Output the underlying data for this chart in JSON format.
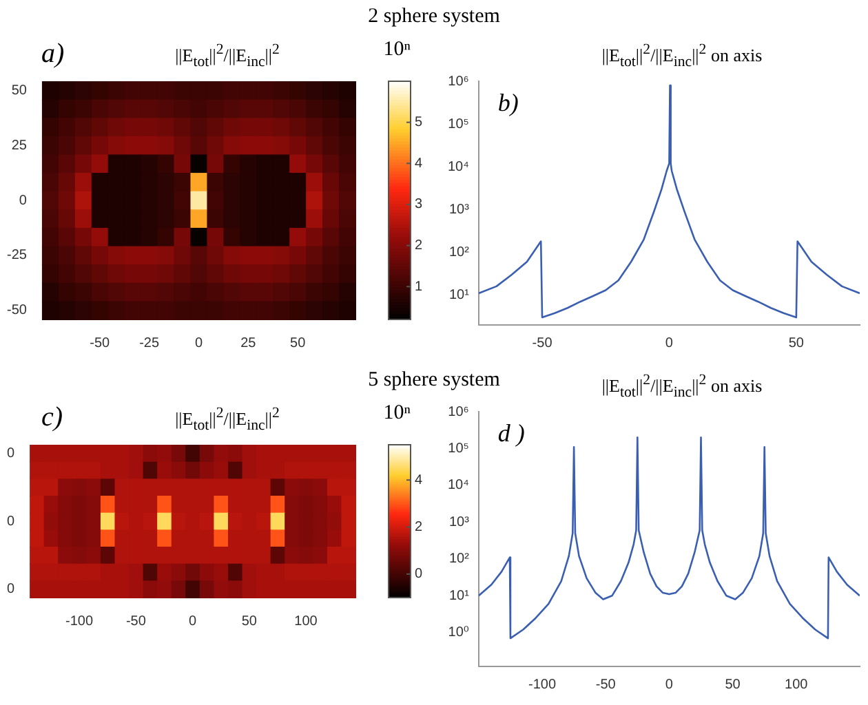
{
  "chart_data": [
    {
      "type": "heatmap",
      "title": "||E$_{tot}$||$^{2}$/||E$_{inc}$||$^{2}$",
      "clabel": "10ⁿ",
      "annotations": [
        "2 sphere system",
        "a)"
      ],
      "clim": [
        0.2,
        6
      ],
      "cticks": [
        1,
        2,
        3,
        4,
        5
      ],
      "categories": [
        null,
        null,
        null,
        "-50",
        null,
        null,
        "-25",
        null,
        null,
        "0",
        null,
        null,
        "25",
        null,
        null,
        "50",
        null,
        null,
        null
      ],
      "y_categories": [
        "50",
        null,
        null,
        "25",
        null,
        null,
        "0",
        null,
        null,
        "-25",
        null,
        null,
        "-50"
      ],
      "cells": [
        [
          0.6,
          0.7,
          0.8,
          0.9,
          1.0,
          1.1,
          1.1,
          1.1,
          1.0,
          1.0,
          1.0,
          1.1,
          1.1,
          1.1,
          1.0,
          0.9,
          0.8,
          0.7,
          0.6
        ],
        [
          0.7,
          0.9,
          1.0,
          1.2,
          1.3,
          1.4,
          1.4,
          1.3,
          1.2,
          1.1,
          1.2,
          1.3,
          1.4,
          1.4,
          1.3,
          1.2,
          1.0,
          0.9,
          0.7
        ],
        [
          0.9,
          1.1,
          1.3,
          1.5,
          1.7,
          1.8,
          1.8,
          1.7,
          1.5,
          1.3,
          1.5,
          1.7,
          1.8,
          1.8,
          1.7,
          1.5,
          1.3,
          1.1,
          0.9
        ],
        [
          1.0,
          1.2,
          1.5,
          1.8,
          2.0,
          2.1,
          2.1,
          2.0,
          1.7,
          1.4,
          1.7,
          2.0,
          2.1,
          2.1,
          2.0,
          1.8,
          1.5,
          1.2,
          1.0
        ],
        [
          1.1,
          1.4,
          1.8,
          2.2,
          0.6,
          0.6,
          0.7,
          0.9,
          1.8,
          0.3,
          1.8,
          0.9,
          0.7,
          0.6,
          0.6,
          2.2,
          1.8,
          1.4,
          1.1
        ],
        [
          1.2,
          1.6,
          2.3,
          0.6,
          0.6,
          0.6,
          0.7,
          0.8,
          1.0,
          4.5,
          1.0,
          0.8,
          0.7,
          0.6,
          0.6,
          0.6,
          2.3,
          1.6,
          1.2
        ],
        [
          1.3,
          1.7,
          2.5,
          0.6,
          0.6,
          0.6,
          0.7,
          0.8,
          1.1,
          5.5,
          1.1,
          0.8,
          0.7,
          0.6,
          0.6,
          0.6,
          2.5,
          1.7,
          1.3
        ],
        [
          1.2,
          1.6,
          2.3,
          0.6,
          0.6,
          0.6,
          0.7,
          0.8,
          1.0,
          4.5,
          1.0,
          0.8,
          0.7,
          0.6,
          0.6,
          0.6,
          2.3,
          1.6,
          1.2
        ],
        [
          1.1,
          1.4,
          1.8,
          2.2,
          0.6,
          0.6,
          0.7,
          0.9,
          1.8,
          0.3,
          1.8,
          0.9,
          0.7,
          0.6,
          0.6,
          2.2,
          1.8,
          1.4,
          1.1
        ],
        [
          1.0,
          1.2,
          1.5,
          1.8,
          2.0,
          2.1,
          2.1,
          2.0,
          1.7,
          1.4,
          1.7,
          2.0,
          2.1,
          2.1,
          2.0,
          1.8,
          1.5,
          1.2,
          1.0
        ],
        [
          0.9,
          1.1,
          1.3,
          1.5,
          1.7,
          1.8,
          1.8,
          1.7,
          1.5,
          1.3,
          1.5,
          1.7,
          1.8,
          1.8,
          1.7,
          1.5,
          1.3,
          1.1,
          0.9
        ],
        [
          0.7,
          0.9,
          1.0,
          1.2,
          1.3,
          1.4,
          1.4,
          1.3,
          1.2,
          1.1,
          1.2,
          1.3,
          1.4,
          1.4,
          1.3,
          1.2,
          1.0,
          0.9,
          0.7
        ],
        [
          0.6,
          0.7,
          0.8,
          0.9,
          1.0,
          1.1,
          1.1,
          1.1,
          1.0,
          1.0,
          1.0,
          1.1,
          1.1,
          1.1,
          1.0,
          0.9,
          0.8,
          0.7,
          0.6
        ]
      ]
    },
    {
      "type": "line",
      "title": "||E$_{tot}$||$^{2}$/||E$_{inc}$||$^{2}$ on axis",
      "annotations": [
        "b)"
      ],
      "log": "y",
      "xlim": [
        -75,
        75
      ],
      "xticks": [
        -50,
        0,
        50
      ],
      "ylim": [
        2,
        1000000
      ],
      "yticks": [
        {
          "value": 10,
          "label": "10¹"
        },
        {
          "value": 100,
          "label": "10²"
        },
        {
          "value": 1000,
          "label": "10³"
        },
        {
          "value": 10000,
          "label": "10⁴"
        },
        {
          "value": 100000,
          "label": "10⁵"
        },
        {
          "value": 1000000,
          "label": "10⁶"
        }
      ],
      "series": [
        {
          "color": "#3b5fb0",
          "x": [
            -75,
            -68,
            -62,
            -56,
            -50.5,
            -50,
            -45,
            -40,
            -35,
            -30,
            -25,
            -20,
            -15,
            -10,
            -6,
            -3,
            -1,
            0,
            0.3,
            0.6,
            1,
            3,
            6,
            10,
            15,
            20,
            25,
            30,
            35,
            40,
            45,
            50,
            50.5,
            56,
            62,
            68,
            75
          ],
          "values": [
            11,
            16,
            30,
            60,
            180,
            3,
            3.8,
            5,
            7,
            9.5,
            13,
            22,
            60,
            200,
            900,
            3000,
            8000,
            12000,
            800000,
            12000,
            8000,
            3000,
            900,
            200,
            60,
            22,
            13,
            9.5,
            7,
            5,
            3.8,
            3,
            180,
            60,
            30,
            16,
            11
          ]
        }
      ]
    },
    {
      "type": "heatmap",
      "title": "||E$_{tot}$||$^{2}$/||E$_{inc}$||$^{2}$",
      "clabel": "10ⁿ",
      "annotations": [
        "5 sphere system",
        "c)"
      ],
      "clim": [
        -1,
        5.5
      ],
      "cticks": [
        0,
        2,
        4
      ],
      "categories": [
        null,
        null,
        null,
        "-100",
        null,
        null,
        null,
        "-50",
        null,
        null,
        null,
        "0",
        null,
        null,
        null,
        "50",
        null,
        null,
        null,
        "100",
        null,
        null,
        null
      ],
      "y_categories": [
        "0",
        null,
        null,
        null,
        "0",
        null,
        null,
        null,
        "0"
      ],
      "cells": [
        [
          1.5,
          1.5,
          1.5,
          1.5,
          1.5,
          1.5,
          1.5,
          1.4,
          1.1,
          1.2,
          0.8,
          0.0,
          0.8,
          1.2,
          1.1,
          1.4,
          1.5,
          1.5,
          1.5,
          1.5,
          1.5,
          1.5,
          1.5
        ],
        [
          1.6,
          1.6,
          1.6,
          1.6,
          1.6,
          1.5,
          1.5,
          1.4,
          0.2,
          1.3,
          1.1,
          0.7,
          1.1,
          1.3,
          0.2,
          1.4,
          1.5,
          1.5,
          1.6,
          1.6,
          1.6,
          1.6,
          1.6
        ],
        [
          1.7,
          1.7,
          1.1,
          1.0,
          1.1,
          0.4,
          1.6,
          1.6,
          1.6,
          1.6,
          1.6,
          1.6,
          1.6,
          1.6,
          1.6,
          1.6,
          1.6,
          0.4,
          1.1,
          1.0,
          1.1,
          1.7,
          1.7
        ],
        [
          1.8,
          1.3,
          1.0,
          0.9,
          1.0,
          3.0,
          1.6,
          1.6,
          1.6,
          3.0,
          1.6,
          1.6,
          1.6,
          3.0,
          1.6,
          1.6,
          1.6,
          3.0,
          1.0,
          0.9,
          1.0,
          1.3,
          1.8
        ],
        [
          1.8,
          1.2,
          1.0,
          0.9,
          1.0,
          4.5,
          1.7,
          1.6,
          1.7,
          4.5,
          1.7,
          1.6,
          1.7,
          4.5,
          1.7,
          1.6,
          1.7,
          4.5,
          1.0,
          0.9,
          1.0,
          1.2,
          1.8
        ],
        [
          1.8,
          1.3,
          1.0,
          0.9,
          1.0,
          3.0,
          1.6,
          1.6,
          1.6,
          3.0,
          1.6,
          1.6,
          1.6,
          3.0,
          1.6,
          1.6,
          1.6,
          3.0,
          1.0,
          0.9,
          1.0,
          1.3,
          1.8
        ],
        [
          1.7,
          1.7,
          1.1,
          1.0,
          1.1,
          0.4,
          1.6,
          1.6,
          1.6,
          1.6,
          1.6,
          1.6,
          1.6,
          1.6,
          1.6,
          1.6,
          1.6,
          0.4,
          1.1,
          1.0,
          1.1,
          1.7,
          1.7
        ],
        [
          1.6,
          1.6,
          1.6,
          1.6,
          1.6,
          1.5,
          1.5,
          1.4,
          0.2,
          1.3,
          1.1,
          0.7,
          1.1,
          1.3,
          0.2,
          1.4,
          1.5,
          1.5,
          1.6,
          1.6,
          1.6,
          1.6,
          1.6
        ],
        [
          1.5,
          1.5,
          1.5,
          1.5,
          1.5,
          1.5,
          1.5,
          1.4,
          1.1,
          1.2,
          0.8,
          0.0,
          0.8,
          1.2,
          1.1,
          1.4,
          1.5,
          1.5,
          1.5,
          1.5,
          1.5,
          1.5,
          1.5
        ]
      ]
    },
    {
      "type": "line",
      "title": "||E$_{tot}$||$^{2}$/||E$_{inc}$||$^{2}$ on axis",
      "annotations": [
        "d )"
      ],
      "log": "y",
      "xlim": [
        -150,
        150
      ],
      "xticks": [
        -100,
        -50,
        0,
        50,
        100
      ],
      "ylim": [
        0.12,
        1000000
      ],
      "yticks": [
        {
          "value": 1,
          "label": "10⁰"
        },
        {
          "value": 10,
          "label": "10¹"
        },
        {
          "value": 100,
          "label": "10²"
        },
        {
          "value": 1000,
          "label": "10³"
        },
        {
          "value": 10000,
          "label": "10⁴"
        },
        {
          "value": 100000,
          "label": "10⁵"
        },
        {
          "value": 1000000,
          "label": "10⁶"
        }
      ],
      "series": [
        {
          "color": "#3b5fb0",
          "x": [
            -150,
            -140,
            -132,
            -125.5,
            -125,
            -115,
            -105,
            -95,
            -85,
            -79,
            -76,
            -75,
            -74,
            -71,
            -65,
            -58,
            -52,
            -45,
            -38,
            -32,
            -28,
            -26,
            -25,
            -24,
            -20,
            -15,
            -10,
            -5,
            0,
            5,
            10,
            15,
            20,
            24,
            25,
            26,
            28,
            32,
            38,
            45,
            52,
            58,
            65,
            71,
            74,
            75,
            76,
            79,
            85,
            95,
            105,
            115,
            125,
            125.5,
            132,
            140,
            150
          ],
          "values": [
            10,
            20,
            45,
            110,
            0.7,
            1.2,
            2.5,
            6,
            25,
            120,
            500,
            110000,
            500,
            120,
            30,
            12,
            8,
            10,
            25,
            80,
            250,
            600,
            200000,
            600,
            150,
            40,
            18,
            12,
            11,
            12,
            18,
            40,
            150,
            600,
            200000,
            600,
            250,
            80,
            25,
            10,
            8,
            12,
            30,
            120,
            500,
            110000,
            500,
            120,
            25,
            6,
            2.5,
            1.2,
            0.7,
            110,
            45,
            20,
            10
          ]
        }
      ]
    }
  ]
}
